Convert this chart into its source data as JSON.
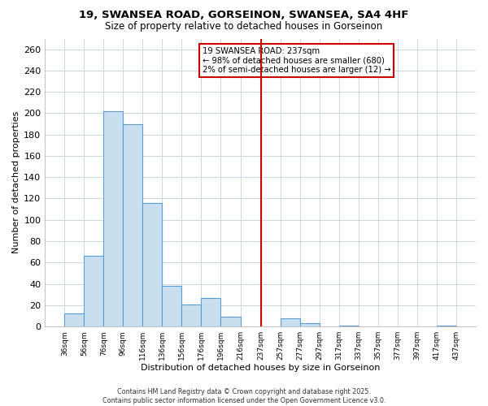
{
  "title": "19, SWANSEA ROAD, GORSEINON, SWANSEA, SA4 4HF",
  "subtitle": "Size of property relative to detached houses in Gorseinon",
  "xlabel": "Distribution of detached houses by size in Gorseinon",
  "ylabel": "Number of detached properties",
  "bins": [
    16,
    36,
    56,
    76,
    96,
    116,
    136,
    156,
    176,
    196,
    216,
    237,
    257,
    277,
    297,
    317,
    337,
    357,
    377,
    397,
    417,
    437
  ],
  "heights": [
    0,
    12,
    66,
    202,
    190,
    116,
    38,
    21,
    27,
    9,
    0,
    0,
    8,
    3,
    0,
    1,
    0,
    0,
    0,
    0,
    1
  ],
  "bar_color": "#c8dff0",
  "bar_edge_color": "#5b9bd5",
  "marker_x": 237,
  "marker_color": "#cc0000",
  "ylim": [
    0,
    270
  ],
  "xlim": [
    16,
    457
  ],
  "xtick_positions": [
    36,
    56,
    76,
    96,
    116,
    136,
    156,
    176,
    196,
    216,
    237,
    257,
    277,
    297,
    317,
    337,
    357,
    377,
    397,
    417,
    437
  ],
  "xtick_labels": [
    "36sqm",
    "56sqm",
    "76sqm",
    "96sqm",
    "116sqm",
    "136sqm",
    "156sqm",
    "176sqm",
    "196sqm",
    "216sqm",
    "237sqm",
    "257sqm",
    "277sqm",
    "297sqm",
    "317sqm",
    "337sqm",
    "357sqm",
    "377sqm",
    "397sqm",
    "417sqm",
    "437sqm"
  ],
  "ytick_max": 260,
  "ytick_step": 20,
  "annotation_title": "19 SWANSEA ROAD: 237sqm",
  "annotation_line1": "← 98% of detached houses are smaller (680)",
  "annotation_line2": "2% of semi-detached houses are larger (12) →",
  "annotation_box_color": "#ffffff",
  "annotation_box_edge": "#cc0000",
  "footnote1": "Contains HM Land Registry data © Crown copyright and database right 2025.",
  "footnote2": "Contains public sector information licensed under the Open Government Licence v3.0.",
  "background_color": "#ffffff",
  "grid_color": "#c8d8e8"
}
